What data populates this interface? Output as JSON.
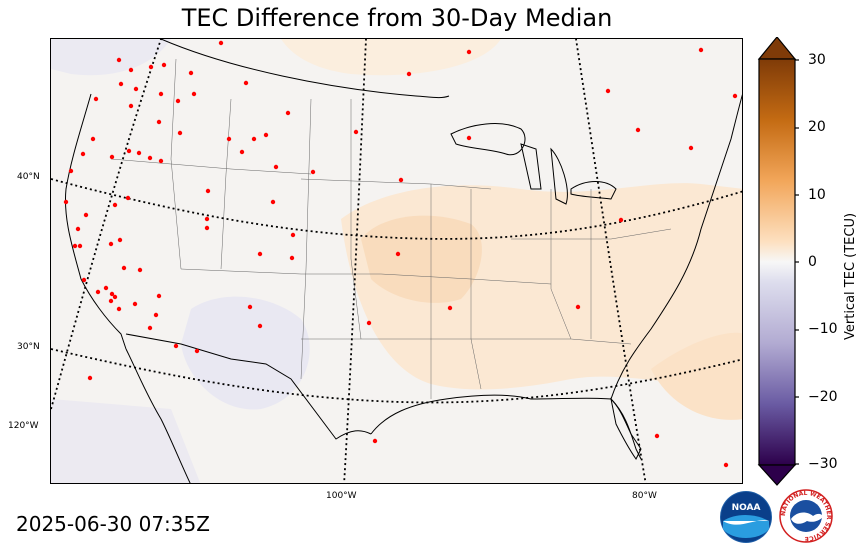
{
  "title": "TEC Difference from 30-Day Median",
  "timestamp": "2025-06-30 07:35Z",
  "colorbar": {
    "label": "Vertical TEC (TECU)",
    "ticks": [
      "30",
      "20",
      "10",
      "0",
      "−10",
      "−20",
      "−30"
    ],
    "range": [
      -30,
      30
    ]
  },
  "lat_labels": [
    "40°N",
    "30°N",
    "120°W"
  ],
  "lon_labels": [
    "100°W",
    "80°W"
  ],
  "logos": {
    "noaa_text": "NOAA",
    "nws_text": "NATIONAL WEATHER SERVICE"
  },
  "colors": {
    "positive": "#f6c58c",
    "negative": "#e6e4f1",
    "neutral": "#f5f3f1",
    "station": "#ff0000"
  }
}
